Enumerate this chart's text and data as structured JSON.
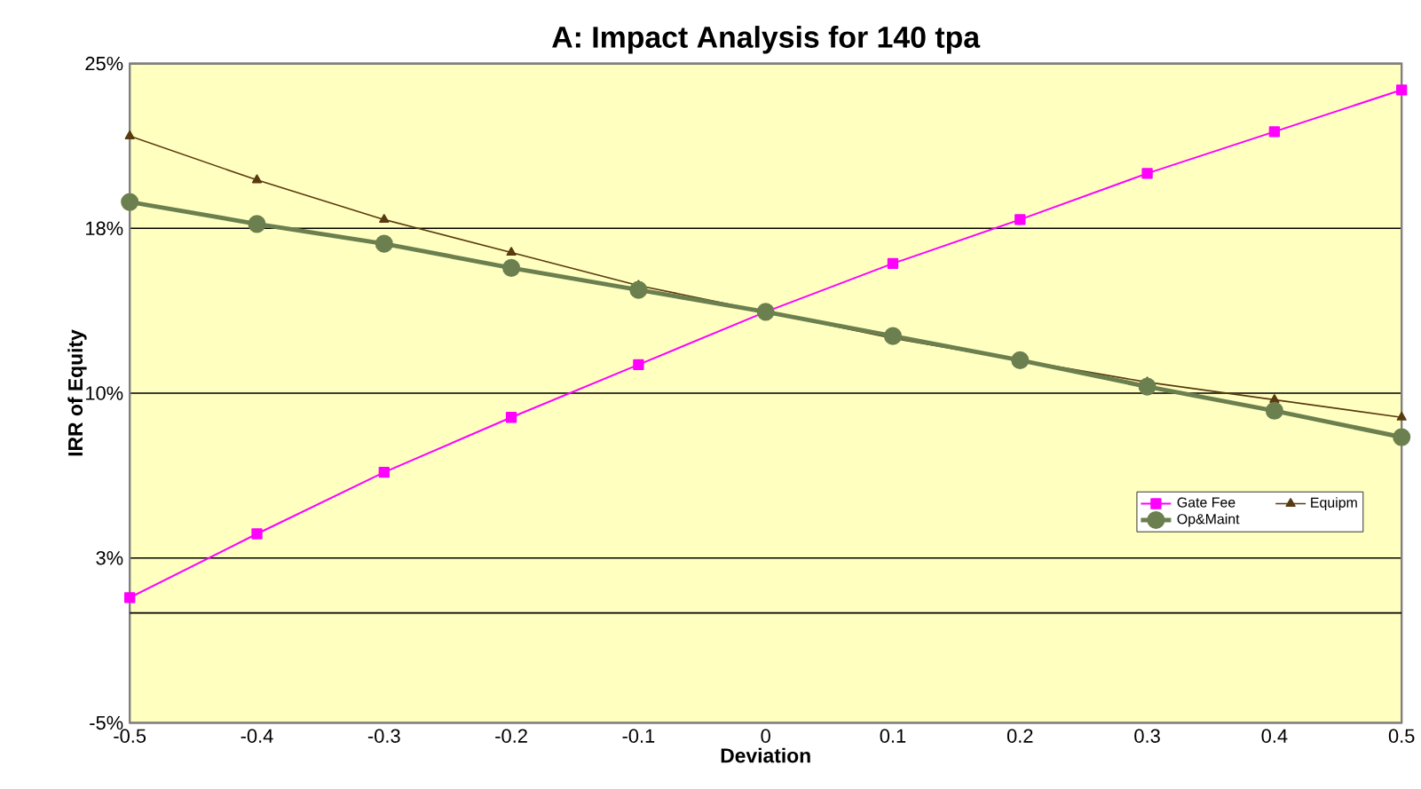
{
  "chart_data": {
    "type": "line",
    "title": "A: Impact Analysis for 140 tpa",
    "xlabel": "Deviation",
    "ylabel": "IRR of Equity",
    "x": [
      -0.5,
      -0.4,
      -0.3,
      -0.2,
      -0.1,
      0,
      0.1,
      0.2,
      0.3,
      0.4,
      0.5
    ],
    "series": [
      {
        "name": "Gate Fee",
        "color": "#ff00ff",
        "marker": "square",
        "values": [
          0.7,
          3.6,
          6.4,
          8.9,
          11.3,
          13.7,
          15.9,
          17.9,
          20.0,
          21.9,
          23.8
        ]
      },
      {
        "name": "Equipm",
        "color": "#5a3a10",
        "marker": "triangle",
        "values": [
          21.7,
          19.7,
          17.9,
          16.4,
          14.9,
          13.7,
          12.5,
          11.5,
          10.5,
          9.7,
          8.9
        ]
      },
      {
        "name": "Op&Maint",
        "color": "#6b7f4f",
        "marker": "circle",
        "values": [
          18.7,
          17.7,
          16.8,
          15.7,
          14.7,
          13.7,
          12.6,
          11.5,
          10.3,
          9.2,
          8.0
        ]
      }
    ],
    "xlim": [
      -0.5,
      0.5
    ],
    "xticks": [
      -0.5,
      -0.4,
      -0.3,
      -0.2,
      -0.1,
      0,
      0.1,
      0.2,
      0.3,
      0.4,
      0.5
    ],
    "ylim": [
      -5,
      25
    ],
    "yticks": [
      {
        "value": -5,
        "label": "-5%"
      },
      {
        "value": 2.5,
        "label": "3%"
      },
      {
        "value": 10,
        "label": "10%"
      },
      {
        "value": 17.5,
        "label": "18%"
      },
      {
        "value": 25,
        "label": "25%"
      }
    ],
    "grid": "y",
    "legend": "right",
    "ref_lines": [
      {
        "axis": "y",
        "value": 0,
        "color": "#000000"
      }
    ]
  }
}
